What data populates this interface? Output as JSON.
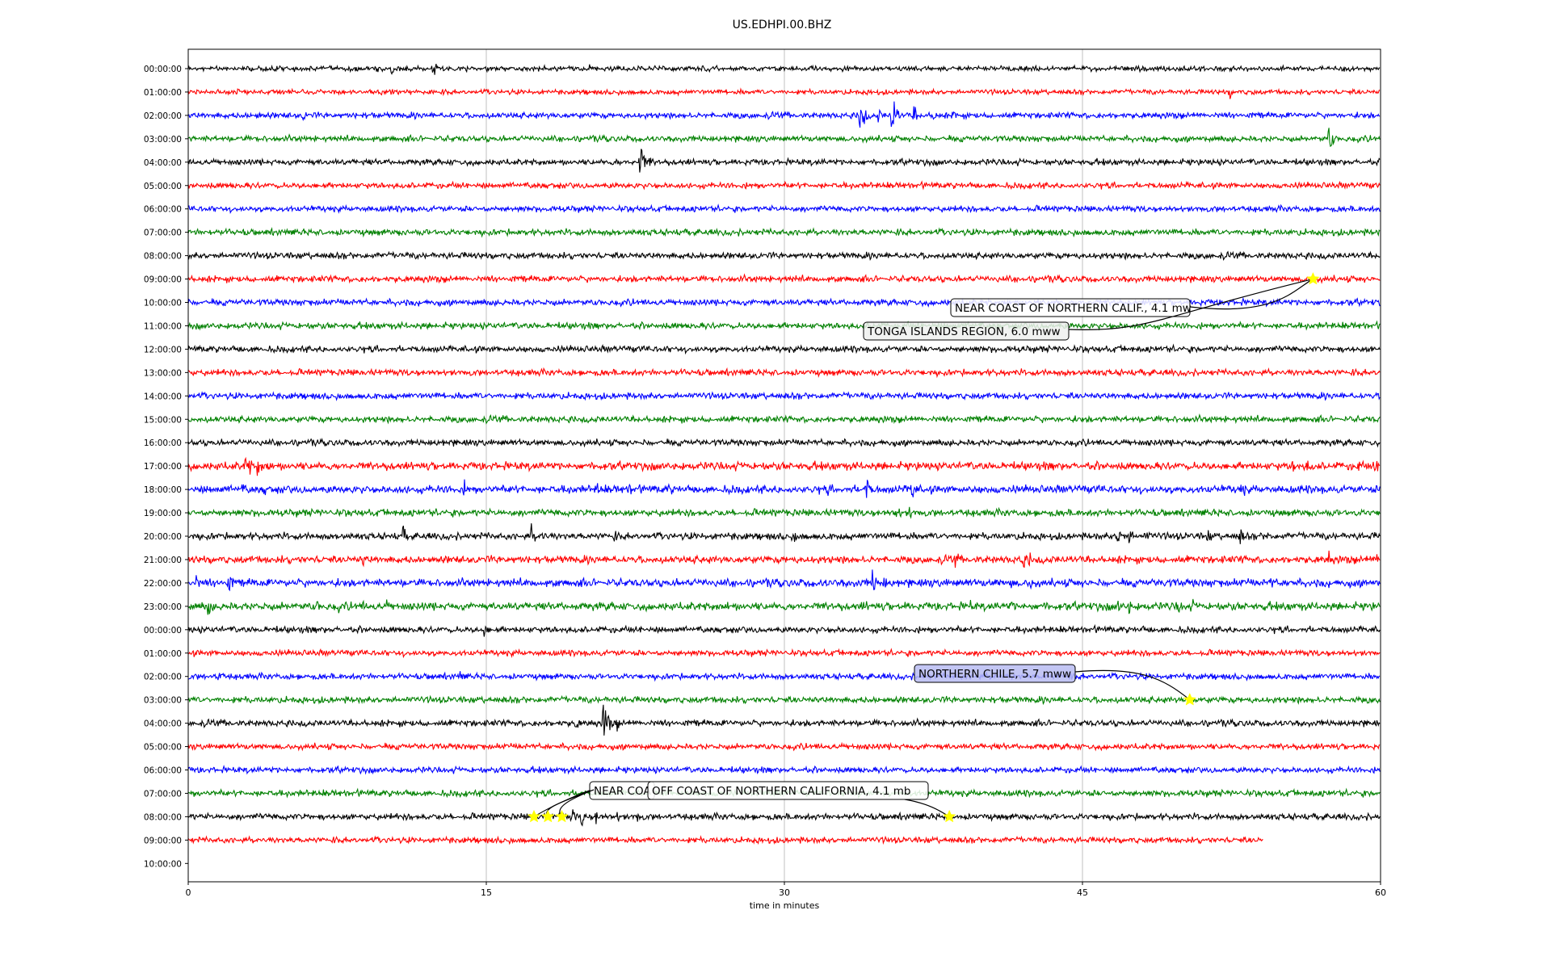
{
  "chart_data": {
    "type": "line",
    "title": "US.EDHPI.00.BHZ",
    "xlabel": "time in minutes",
    "x_ticks": [
      0,
      15,
      30,
      45,
      60
    ],
    "xlim": [
      0,
      60
    ],
    "grid": "vertical at x ticks",
    "row_labels": [
      "00:00:00",
      "01:00:00",
      "02:00:00",
      "03:00:00",
      "04:00:00",
      "05:00:00",
      "06:00:00",
      "07:00:00",
      "08:00:00",
      "09:00:00",
      "10:00:00",
      "11:00:00",
      "12:00:00",
      "13:00:00",
      "14:00:00",
      "15:00:00",
      "16:00:00",
      "17:00:00",
      "18:00:00",
      "19:00:00",
      "20:00:00",
      "21:00:00",
      "22:00:00",
      "23:00:00",
      "00:00:00",
      "01:00:00",
      "02:00:00",
      "03:00:00",
      "04:00:00",
      "05:00:00",
      "06:00:00",
      "07:00:00",
      "08:00:00",
      "09:00:00",
      "10:00:00"
    ],
    "trace_colors": [
      "#000000",
      "#ff0000",
      "#0000ff",
      "#008000"
    ],
    "traces": [
      {
        "row": 0,
        "end": 60,
        "noise": 2.5,
        "events": [
          [
            10.2,
            6
          ],
          [
            12.3,
            14
          ],
          [
            14.1,
            7
          ],
          [
            20.1,
            7
          ]
        ]
      },
      {
        "row": 1,
        "end": 60,
        "noise": 2.5,
        "events": [
          [
            52.4,
            8
          ],
          [
            53.5,
            6
          ]
        ]
      },
      {
        "row": 2,
        "end": 60,
        "noise": 3,
        "events": [
          [
            3.5,
            7
          ],
          [
            5.8,
            8
          ],
          [
            33.8,
            28
          ],
          [
            34.7,
            10
          ],
          [
            35.4,
            32
          ],
          [
            36.5,
            12
          ],
          [
            37.5,
            10
          ],
          [
            38.5,
            8
          ]
        ]
      },
      {
        "row": 3,
        "end": 60,
        "noise": 3,
        "events": [
          [
            57.4,
            18
          ]
        ]
      },
      {
        "row": 4,
        "end": 60,
        "noise": 3,
        "events": [
          [
            21.5,
            7
          ],
          [
            22.7,
            28
          ],
          [
            23.2,
            8
          ]
        ]
      },
      {
        "row": 5,
        "end": 60,
        "noise": 3,
        "events": [
          [
            30.5,
            4
          ]
        ]
      },
      {
        "row": 6,
        "end": 60,
        "noise": 3,
        "events": []
      },
      {
        "row": 7,
        "end": 60,
        "noise": 3.2,
        "events": []
      },
      {
        "row": 8,
        "end": 60,
        "noise": 3.2,
        "events": []
      },
      {
        "row": 9,
        "end": 60,
        "noise": 3.2,
        "events": []
      },
      {
        "row": 10,
        "end": 60,
        "noise": 3.2,
        "events": []
      },
      {
        "row": 11,
        "end": 60,
        "noise": 3.2,
        "events": []
      },
      {
        "row": 12,
        "end": 60,
        "noise": 3.2,
        "events": []
      },
      {
        "row": 13,
        "end": 60,
        "noise": 3.2,
        "events": []
      },
      {
        "row": 14,
        "end": 60,
        "noise": 3.2,
        "events": []
      },
      {
        "row": 15,
        "end": 60,
        "noise": 3.2,
        "events": []
      },
      {
        "row": 16,
        "end": 60,
        "noise": 3.2,
        "events": [
          [
            47.8,
            5
          ]
        ]
      },
      {
        "row": 17,
        "end": 60,
        "noise": 4,
        "events": [
          [
            2.9,
            22
          ],
          [
            3.5,
            14
          ],
          [
            4,
            10
          ],
          [
            10.8,
            5
          ],
          [
            13.6,
            5
          ],
          [
            55.6,
            10
          ],
          [
            56.3,
            12
          ],
          [
            58.9,
            10
          ],
          [
            59.7,
            12
          ]
        ]
      },
      {
        "row": 18,
        "end": 60,
        "noise": 4,
        "events": [
          [
            1.5,
            8
          ],
          [
            2.7,
            8
          ],
          [
            3.8,
            8
          ],
          [
            10.8,
            7
          ],
          [
            12.4,
            8
          ],
          [
            13.9,
            10
          ],
          [
            16.3,
            8
          ],
          [
            19,
            8
          ],
          [
            20.6,
            10
          ],
          [
            22.2,
            9
          ],
          [
            24.2,
            8
          ],
          [
            32.2,
            8
          ],
          [
            34.1,
            18
          ],
          [
            36.4,
            18
          ],
          [
            53,
            12
          ]
        ]
      },
      {
        "row": 19,
        "end": 60,
        "noise": 3.5,
        "events": [
          [
            35.6,
            14
          ],
          [
            36.3,
            10
          ]
        ]
      },
      {
        "row": 20,
        "end": 60,
        "noise": 3.5,
        "events": [
          [
            10.8,
            12
          ],
          [
            17.2,
            16
          ],
          [
            17.8,
            12
          ],
          [
            21.4,
            8
          ],
          [
            30.5,
            8
          ],
          [
            36.1,
            6
          ],
          [
            42.1,
            8
          ],
          [
            46.8,
            18
          ],
          [
            47.3,
            14
          ],
          [
            48.2,
            10
          ],
          [
            51.3,
            10
          ],
          [
            52.9,
            12
          ],
          [
            54.3,
            8
          ]
        ]
      },
      {
        "row": 21,
        "end": 60,
        "noise": 3.8,
        "events": [
          [
            8.8,
            10
          ],
          [
            38.6,
            9
          ],
          [
            41.9,
            16
          ],
          [
            42.3,
            10
          ],
          [
            57.4,
            10
          ],
          [
            59.8,
            10
          ]
        ]
      },
      {
        "row": 22,
        "end": 60,
        "noise": 4,
        "events": [
          [
            0.4,
            10
          ],
          [
            2,
            16
          ],
          [
            25.9,
            6
          ],
          [
            31.9,
            6
          ],
          [
            33.7,
            8
          ],
          [
            34.4,
            18
          ],
          [
            35,
            10
          ],
          [
            40.6,
            8
          ],
          [
            41.4,
            9
          ],
          [
            42.4,
            10
          ],
          [
            49.1,
            8
          ],
          [
            54.5,
            10
          ],
          [
            55.5,
            8
          ]
        ]
      },
      {
        "row": 23,
        "end": 60,
        "noise": 4,
        "events": [
          [
            1,
            14
          ],
          [
            6.5,
            9
          ],
          [
            7.5,
            8
          ],
          [
            8.8,
            7
          ],
          [
            10,
            8
          ],
          [
            27.1,
            8
          ],
          [
            34,
            9
          ],
          [
            36,
            7
          ],
          [
            39.3,
            9
          ],
          [
            41.4,
            10
          ],
          [
            43,
            10
          ],
          [
            46.8,
            10
          ],
          [
            47.3,
            12
          ],
          [
            49.8,
            12
          ],
          [
            50.5,
            9
          ]
        ]
      },
      {
        "row": 24,
        "end": 60,
        "noise": 3.2,
        "events": [
          [
            14.9,
            12
          ],
          [
            22.8,
            6
          ],
          [
            32.5,
            5
          ],
          [
            48,
            5
          ]
        ]
      },
      {
        "row": 25,
        "end": 60,
        "noise": 3,
        "events": []
      },
      {
        "row": 26,
        "end": 60,
        "noise": 3,
        "events": [
          [
            1.5,
            12
          ],
          [
            12.3,
            7
          ],
          [
            13.7,
            8
          ],
          [
            58.5,
            4
          ]
        ]
      },
      {
        "row": 27,
        "end": 60,
        "noise": 3.2,
        "events": []
      },
      {
        "row": 28,
        "end": 60,
        "noise": 3.2,
        "events": [
          [
            2,
            6
          ],
          [
            19.5,
            10
          ],
          [
            20.9,
            30
          ],
          [
            21.5,
            10
          ]
        ]
      },
      {
        "row": 29,
        "end": 60,
        "noise": 3,
        "events": []
      },
      {
        "row": 30,
        "end": 60,
        "noise": 3,
        "events": []
      },
      {
        "row": 31,
        "end": 60,
        "noise": 3.2,
        "events": []
      },
      {
        "row": 32,
        "end": 60,
        "noise": 3.2,
        "events": [
          [
            19.3,
            12
          ],
          [
            19.8,
            14
          ],
          [
            20.5,
            12
          ],
          [
            21.5,
            10
          ],
          [
            22.6,
            8
          ]
        ]
      },
      {
        "row": 33,
        "end": 54.1,
        "noise": 3,
        "events": []
      }
    ],
    "markers": [
      {
        "row": 9,
        "minute": 56.6
      },
      {
        "row": 27,
        "minute": 50.4
      },
      {
        "row": 32,
        "minute": 17.4
      },
      {
        "row": 32,
        "minute": 18.1
      },
      {
        "row": 32,
        "minute": 18.8
      },
      {
        "row": 32,
        "minute": 38.3
      }
    ],
    "annotations": [
      {
        "text": "NEAR COAST OF NORTHERN CALIF., 4.1 mw",
        "marker": 0,
        "box_fill": "#ffffff"
      },
      {
        "text": "TONGA ISLANDS REGION, 6.0 mww",
        "marker": 0,
        "box_fill": "#eef0ee"
      },
      {
        "text": "NORTHERN CHILE, 5.7 mww",
        "marker": 1,
        "box_fill": "#b8bcf2"
      },
      {
        "text": "NEAR COA",
        "marker": 2,
        "box_fill": "#ffffff"
      },
      {
        "text": "OFF COAST OF NORTHERN CALIFORNIA, 4.1 mb",
        "marker": 5,
        "box_fill": "#ffffff"
      }
    ]
  }
}
